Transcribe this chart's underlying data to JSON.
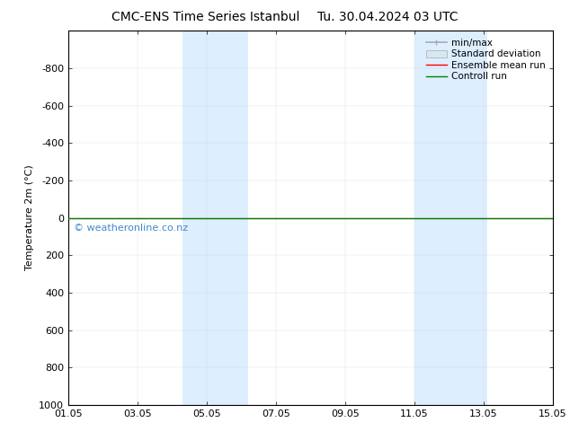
{
  "title1": "CMC-ENS Time Series Istanbul",
  "title2": "Tu. 30.04.2024 03 UTC",
  "ylabel": "Temperature 2m (°C)",
  "ylim_bottom": 1000,
  "ylim_top": -1000,
  "yticks": [
    -800,
    -600,
    -400,
    -200,
    0,
    200,
    400,
    600,
    800,
    1000
  ],
  "x_min": 1.0,
  "x_max": 15.0,
  "xtick_labels": [
    "01.05",
    "03.05",
    "05.05",
    "07.05",
    "09.05",
    "11.05",
    "13.05",
    "15.05"
  ],
  "xtick_positions": [
    1,
    3,
    5,
    7,
    9,
    11,
    13,
    15
  ],
  "shaded_regions": [
    {
      "x_start": 4.3,
      "x_end": 6.2,
      "color": "#ddeeff"
    },
    {
      "x_start": 11.0,
      "x_end": 13.1,
      "color": "#ddeeff"
    }
  ],
  "control_run_y": 0,
  "ensemble_mean_y": 0,
  "control_run_color": "#008000",
  "ensemble_mean_color": "#ff0000",
  "watermark_text": "© weatheronline.co.nz",
  "watermark_color": "#4488cc",
  "legend_minmax_color": "#aaaaaa",
  "legend_stddev_color": "#cccccc",
  "bg_color": "#ffffff",
  "font_size_title": 10,
  "font_size_tick": 8,
  "font_size_legend": 7.5,
  "font_size_ylabel": 8,
  "font_size_watermark": 8
}
